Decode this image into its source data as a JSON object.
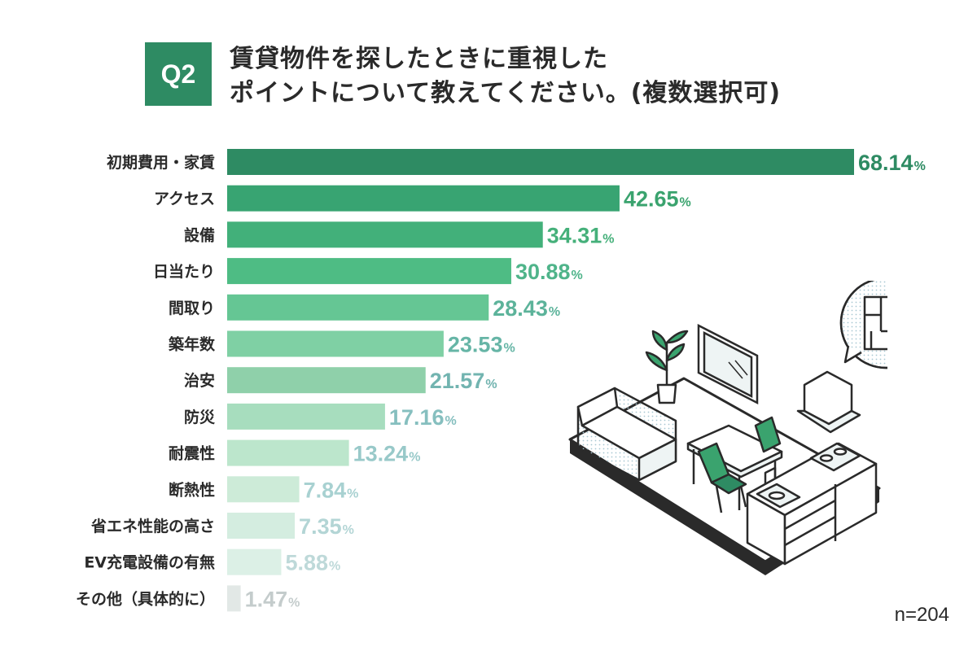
{
  "question": {
    "badge": "Q2",
    "line1": "賃貸物件を探したときに重視した",
    "line2": "ポイントについて教えてください。(複数選択可)"
  },
  "sample": "n=204",
  "colors": {
    "accent": "#2e8b63",
    "bars": [
      "#2e8b63",
      "#38a472",
      "#42b07a",
      "#4ebc84",
      "#65c694",
      "#7fd0a4",
      "#8fd0aa",
      "#a7ddbe",
      "#bce6cc",
      "#cdebd8",
      "#d4ede0",
      "#dcf0e6",
      "#e2e8e6"
    ],
    "values": [
      "#2e8b63",
      "#3aa36e",
      "#45b07a",
      "#4fb48a",
      "#5cb39a",
      "#66b5a6",
      "#72b4b0",
      "#86bfbf",
      "#98c9c9",
      "#a8d1d1",
      "#b3d5d5",
      "#bed9d9",
      "#c4cccc"
    ]
  },
  "chart_data": {
    "type": "bar",
    "orientation": "horizontal",
    "unit": "%",
    "categories": [
      "初期費用・家賃",
      "アクセス",
      "設備",
      "日当たり",
      "間取り",
      "築年数",
      "治安",
      "防災",
      "耐震性",
      "断熱性",
      "省エネ性能の高さ",
      "EV充電設備の有無",
      "その他（具体的に）"
    ],
    "values": [
      68.14,
      42.65,
      34.31,
      30.88,
      28.43,
      23.53,
      21.57,
      17.16,
      13.24,
      7.84,
      7.35,
      5.88,
      1.47
    ],
    "value_labels": [
      "68.14",
      "42.65",
      "34.31",
      "30.88",
      "28.43",
      "23.53",
      "21.57",
      "17.16",
      "13.24",
      "7.84",
      "7.35",
      "5.88",
      "1.47"
    ],
    "xlim": [
      0,
      68.14
    ]
  }
}
